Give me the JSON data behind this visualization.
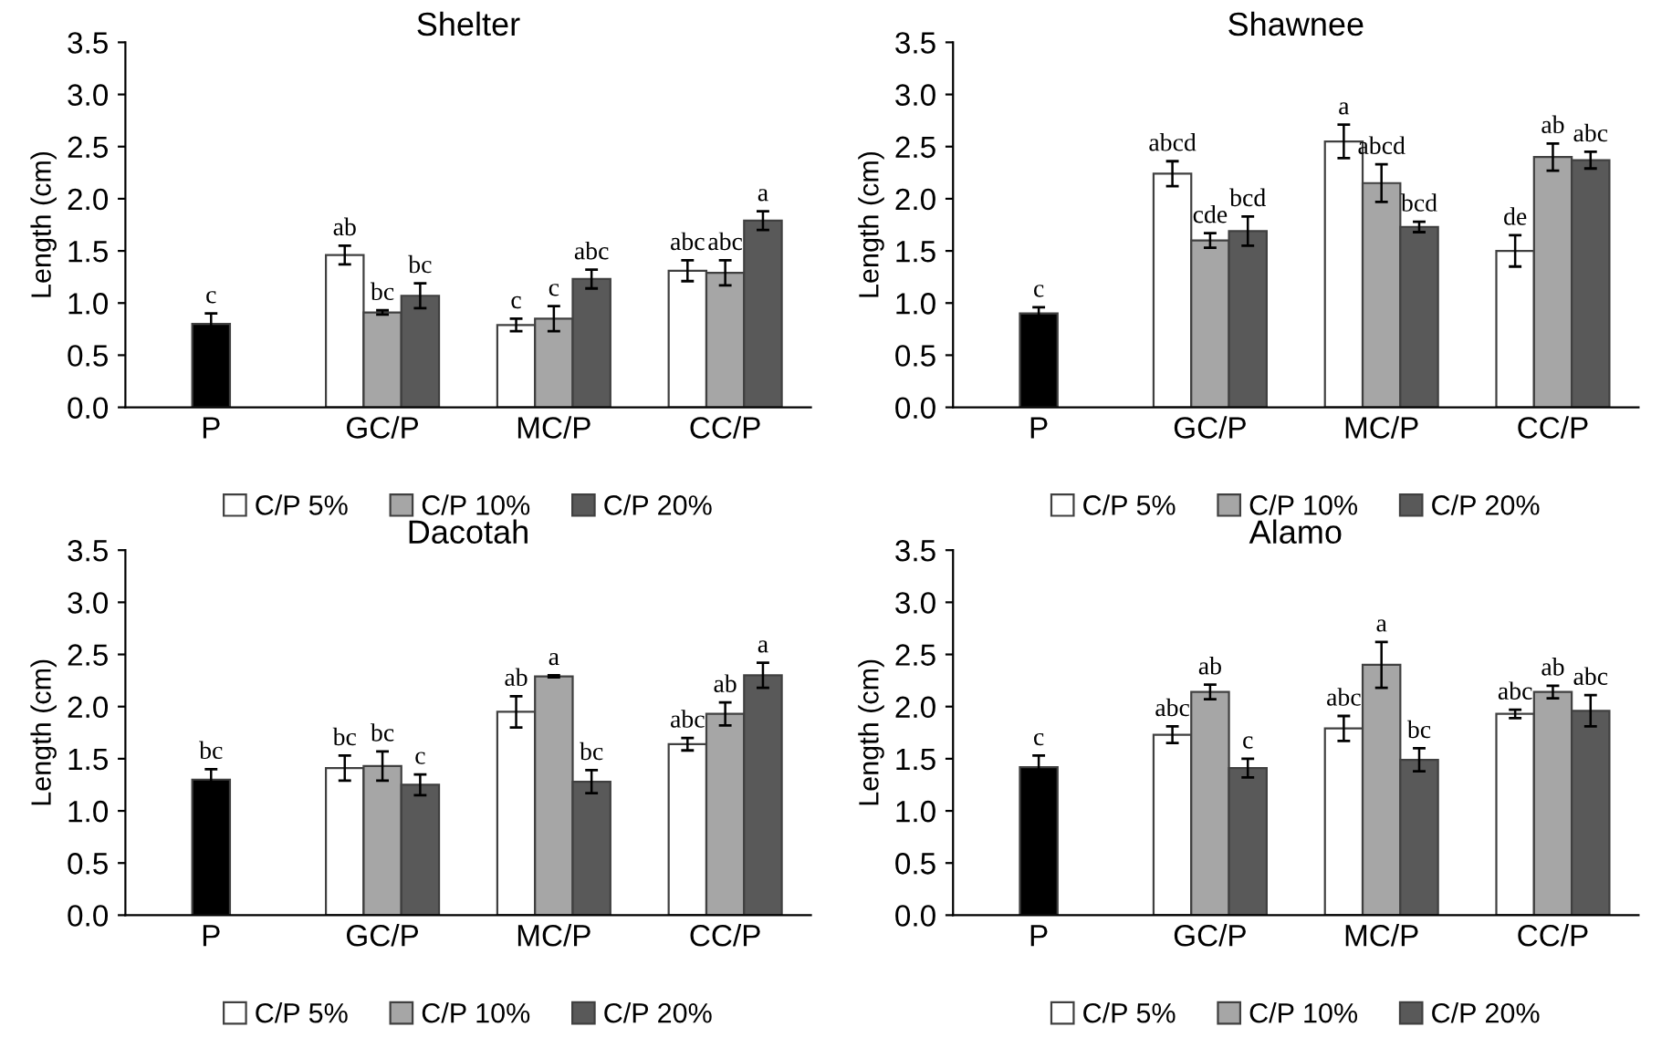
{
  "chart_data": [
    {
      "type": "bar",
      "title": "Shelter",
      "ylabel": "Length (cm)",
      "categories": [
        "P",
        "GC/P",
        "MC/P",
        "CC/P"
      ],
      "ylim": [
        0,
        3.5
      ],
      "yticks": [
        {
          "value": 0,
          "label": "0.0"
        },
        {
          "value": 0.5,
          "label": "0.5"
        },
        {
          "value": 1,
          "label": "1.0"
        },
        {
          "value": 1.5,
          "label": "1.5"
        },
        {
          "value": 2,
          "label": "2.0"
        },
        {
          "value": 2.5,
          "label": "2.5"
        },
        {
          "value": 3,
          "label": "3.0"
        },
        {
          "value": 3.5,
          "label": "3.5"
        }
      ],
      "legend": "bottom",
      "series": [
        {
          "color": "#000000",
          "values": [
            0.8,
            null,
            null,
            null
          ],
          "errors": [
            0.1,
            null,
            null,
            null
          ],
          "value_labels": [
            "c",
            null,
            null,
            null
          ]
        },
        {
          "name": "C/P 5%",
          "color": "#ffffff",
          "values": [
            null,
            1.46,
            0.79,
            1.31
          ],
          "errors": [
            null,
            0.09,
            0.06,
            0.1
          ],
          "value_labels": [
            null,
            "ab",
            "c",
            "abc"
          ]
        },
        {
          "name": "C/P 10%",
          "color": "#a6a6a6",
          "values": [
            null,
            0.91,
            0.85,
            1.29
          ],
          "errors": [
            null,
            0.02,
            0.12,
            0.12
          ],
          "value_labels": [
            null,
            "bc",
            "c",
            "abc"
          ]
        },
        {
          "name": "C/P 20%",
          "color": "#595959",
          "values": [
            null,
            1.07,
            1.23,
            1.79
          ],
          "errors": [
            null,
            0.12,
            0.09,
            0.09
          ],
          "value_labels": [
            null,
            "bc",
            "abc",
            "a"
          ]
        }
      ]
    },
    {
      "type": "bar",
      "title": "Shawnee",
      "ylabel": "Length (cm)",
      "categories": [
        "P",
        "GC/P",
        "MC/P",
        "CC/P"
      ],
      "ylim": [
        0,
        3.5
      ],
      "yticks": [
        {
          "value": 0,
          "label": "0.0"
        },
        {
          "value": 0.5,
          "label": "0.5"
        },
        {
          "value": 1,
          "label": "1.0"
        },
        {
          "value": 1.5,
          "label": "1.5"
        },
        {
          "value": 2,
          "label": "2.0"
        },
        {
          "value": 2.5,
          "label": "2.5"
        },
        {
          "value": 3,
          "label": "3.0"
        },
        {
          "value": 3.5,
          "label": "3.5"
        }
      ],
      "legend": "bottom",
      "series": [
        {
          "color": "#000000",
          "values": [
            0.9,
            null,
            null,
            null
          ],
          "errors": [
            0.06,
            null,
            null,
            null
          ],
          "value_labels": [
            "c",
            null,
            null,
            null
          ]
        },
        {
          "name": "C/P 5%",
          "color": "#ffffff",
          "values": [
            null,
            2.24,
            2.55,
            1.5
          ],
          "errors": [
            null,
            0.12,
            0.16,
            0.15
          ],
          "value_labels": [
            null,
            "abcd",
            "a",
            "de"
          ]
        },
        {
          "name": "C/P 10%",
          "color": "#a6a6a6",
          "values": [
            null,
            1.6,
            2.15,
            2.4
          ],
          "errors": [
            null,
            0.07,
            0.18,
            0.13
          ],
          "value_labels": [
            null,
            "cde",
            "abcd",
            "ab"
          ]
        },
        {
          "name": "C/P 20%",
          "color": "#595959",
          "values": [
            null,
            1.69,
            1.73,
            2.37
          ],
          "errors": [
            null,
            0.14,
            0.05,
            0.08
          ],
          "value_labels": [
            null,
            "bcd",
            "bcd",
            "abc"
          ]
        }
      ]
    },
    {
      "type": "bar",
      "title": "Dacotah",
      "ylabel": "Length (cm)",
      "categories": [
        "P",
        "GC/P",
        "MC/P",
        "CC/P"
      ],
      "ylim": [
        0,
        3.5
      ],
      "yticks": [
        {
          "value": 0,
          "label": "0.0"
        },
        {
          "value": 0.5,
          "label": "0.5"
        },
        {
          "value": 1,
          "label": "1.0"
        },
        {
          "value": 1.5,
          "label": "1.5"
        },
        {
          "value": 2,
          "label": "2.0"
        },
        {
          "value": 2.5,
          "label": "2.5"
        },
        {
          "value": 3,
          "label": "3.0"
        },
        {
          "value": 3.5,
          "label": "3.5"
        }
      ],
      "legend": "bottom",
      "series": [
        {
          "color": "#000000",
          "values": [
            1.3,
            null,
            null,
            null
          ],
          "errors": [
            0.1,
            null,
            null,
            null
          ],
          "value_labels": [
            "bc",
            null,
            null,
            null
          ]
        },
        {
          "name": "C/P 5%",
          "color": "#ffffff",
          "values": [
            null,
            1.41,
            1.95,
            1.64
          ],
          "errors": [
            null,
            0.12,
            0.15,
            0.06
          ],
          "value_labels": [
            null,
            "bc",
            "ab",
            "abc"
          ]
        },
        {
          "name": "C/P 10%",
          "color": "#a6a6a6",
          "values": [
            null,
            1.43,
            2.29,
            1.93
          ],
          "errors": [
            null,
            0.14,
            0.01,
            0.11
          ],
          "value_labels": [
            null,
            "bc",
            "a",
            "ab"
          ]
        },
        {
          "name": "C/P 20%",
          "color": "#595959",
          "values": [
            null,
            1.25,
            1.28,
            2.3
          ],
          "errors": [
            null,
            0.1,
            0.11,
            0.12
          ],
          "value_labels": [
            null,
            "c",
            "bc",
            "a"
          ]
        }
      ]
    },
    {
      "type": "bar",
      "title": "Alamo",
      "ylabel": "Length (cm)",
      "categories": [
        "P",
        "GC/P",
        "MC/P",
        "CC/P"
      ],
      "ylim": [
        0,
        3.5
      ],
      "yticks": [
        {
          "value": 0,
          "label": "0.0"
        },
        {
          "value": 0.5,
          "label": "0.5"
        },
        {
          "value": 1,
          "label": "1.0"
        },
        {
          "value": 1.5,
          "label": "1.5"
        },
        {
          "value": 2,
          "label": "2.0"
        },
        {
          "value": 2.5,
          "label": "2.5"
        },
        {
          "value": 3,
          "label": "3.0"
        },
        {
          "value": 3.5,
          "label": "3.5"
        }
      ],
      "legend": "bottom",
      "series": [
        {
          "color": "#000000",
          "values": [
            1.42,
            null,
            null,
            null
          ],
          "errors": [
            0.11,
            null,
            null,
            null
          ],
          "value_labels": [
            "c",
            null,
            null,
            null
          ]
        },
        {
          "name": "C/P 5%",
          "color": "#ffffff",
          "values": [
            null,
            1.73,
            1.79,
            1.93
          ],
          "errors": [
            null,
            0.08,
            0.12,
            0.04
          ],
          "value_labels": [
            null,
            "abc",
            "abc",
            "abc"
          ]
        },
        {
          "name": "C/P 10%",
          "color": "#a6a6a6",
          "values": [
            null,
            2.14,
            2.4,
            2.14
          ],
          "errors": [
            null,
            0.07,
            0.22,
            0.06
          ],
          "value_labels": [
            null,
            "ab",
            "a",
            "ab"
          ]
        },
        {
          "name": "C/P 20%",
          "color": "#595959",
          "values": [
            null,
            1.41,
            1.49,
            1.96
          ],
          "errors": [
            null,
            0.09,
            0.11,
            0.15
          ],
          "value_labels": [
            null,
            "c",
            "bc",
            "abc"
          ]
        }
      ]
    }
  ]
}
